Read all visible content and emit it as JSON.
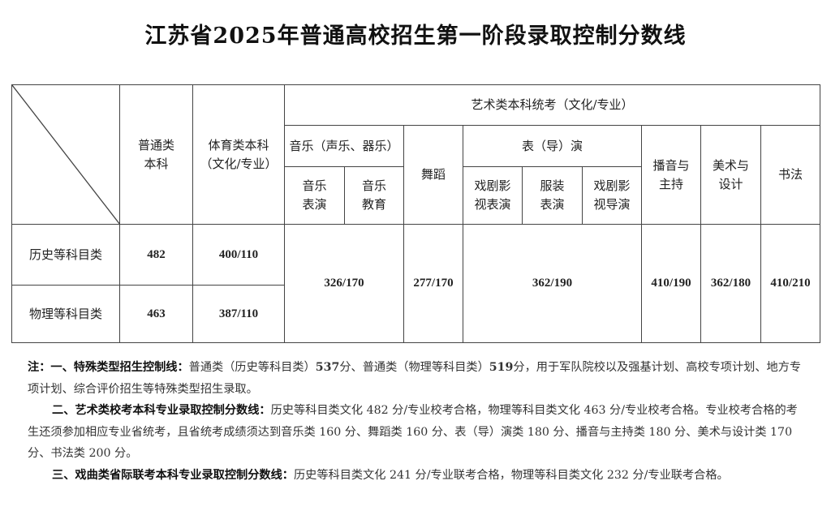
{
  "title": "江苏省2025年普通高校招生第一阶段录取控制分数线",
  "table": {
    "headers": {
      "general": "普通类\n本科",
      "sports": "体育类本科\n（文化/专业）",
      "art": "艺术类本科统考（文化/专业）",
      "music": "音乐（声乐、器乐）",
      "music_perf": "音乐\n表演",
      "music_edu": "音乐\n教育",
      "dance": "舞蹈",
      "acting": "表（导）演",
      "drama_film_acting": "戏剧影\n视表演",
      "costume_perf": "服装\n表演",
      "drama_film_directing": "戏剧影\n视导演",
      "broadcasting": "播音与\n主持",
      "fine_arts": "美术与\n设计",
      "calligraphy": "书法"
    },
    "rows": [
      {
        "label": "历史等科目类",
        "general": "482",
        "sports": "400/110"
      },
      {
        "label": "物理等科目类",
        "general": "463",
        "sports": "387/110"
      }
    ],
    "shared": {
      "music": "326/170",
      "dance": "277/170",
      "acting": "362/190",
      "broadcasting": "410/190",
      "fine_arts": "362/180",
      "calligraphy": "410/210"
    }
  },
  "notes": {
    "n1_label": "注：一、特殊类型招生控制线：",
    "n1_a": "普通类（历史等科目类）",
    "n1_v1": "537",
    "n1_b": "分、普通类（物理等科目类）",
    "n1_v2": "519",
    "n1_c": "分，用于军队院校以及强基计划、高校专项计划、地方专项计划、综合评价招生等特殊类型招生录取。",
    "n2_label": "二、艺术类校考本科专业录取控制分数线：",
    "n2_text": "历史等科目类文化 482 分/专业校考合格，物理等科目类文化 463 分/专业校考合格。专业校考合格的考生还须参加相应专业省统考，且省统考成绩须达到音乐类 160 分、舞蹈类 160 分、表（导）演类 180 分、播音与主持类 180 分、美术与设计类 170 分、书法类 200 分。",
    "n3_label": "三、戏曲类省际联考本科专业录取控制分数线：",
    "n3_text": "历史等科目类文化 241 分/专业联考合格，物理等科目类文化 232 分/专业联考合格。"
  }
}
